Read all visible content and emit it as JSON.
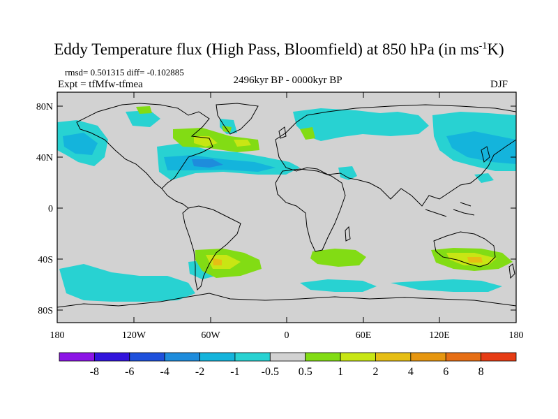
{
  "header": {
    "title": "Eddy Temperature flux (High Pass, Bloomfield) at 850 hPa (in ms",
    "title_sup": "-1",
    "title_end": "K)",
    "rmsd_diff": "rmsd= 0.501315 diff= -0.102885",
    "expt": "Expt = tfMfw-tfmea",
    "period": "2496kyr BP - 0000kyr BP",
    "season": "DJF"
  },
  "map": {
    "lat_ticks": [
      "80N",
      "40N",
      "0",
      "40S",
      "80S"
    ],
    "lon_ticks": [
      "180",
      "120W",
      "60W",
      "0",
      "60E",
      "120E",
      "180"
    ],
    "background_color": "#d2d2d2"
  },
  "colorbar": {
    "colors": [
      "#8c14e6",
      "#3214dc",
      "#1e50dc",
      "#1e8cdc",
      "#14b4dc",
      "#28d2d2",
      "#d2d2d2",
      "#82dc14",
      "#c8e614",
      "#e6be14",
      "#e6960f",
      "#e66e14",
      "#e63c14"
    ],
    "labels": [
      "-8",
      "-6",
      "-4",
      "-2",
      "-1",
      "-0.5",
      "0.5",
      "1",
      "2",
      "4",
      "6",
      "8"
    ]
  }
}
